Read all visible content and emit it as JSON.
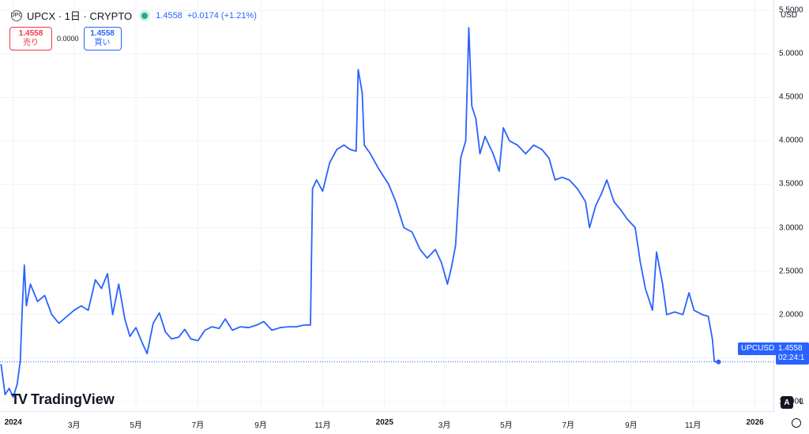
{
  "header": {
    "symbol_title": "UPCX · 1日 · CRYPTO",
    "symbol_icon": "upcx-logo-icon",
    "last_price": "1.4558",
    "change": "+0.0174 (+1.21%)",
    "status_color": "#22ab94"
  },
  "trade": {
    "sell_price": "1.4558",
    "sell_label": "売り",
    "spread": "0.0000",
    "buy_price": "1.4558",
    "buy_label": "買い"
  },
  "price_axis": {
    "currency": "USD",
    "ticks": [
      "5.5000",
      "5.0000",
      "4.5000",
      "4.0000",
      "3.5000",
      "3.0000",
      "2.5000",
      "2.0000",
      "1.5000",
      "1.0000"
    ]
  },
  "time_axis": {
    "ticks": [
      {
        "label": "2024",
        "bold": true
      },
      {
        "label": "3月",
        "bold": false
      },
      {
        "label": "5月",
        "bold": false
      },
      {
        "label": "7月",
        "bold": false
      },
      {
        "label": "9月",
        "bold": false
      },
      {
        "label": "11月",
        "bold": false
      },
      {
        "label": "2025",
        "bold": true
      },
      {
        "label": "3月",
        "bold": false
      },
      {
        "label": "5月",
        "bold": false
      },
      {
        "label": "7月",
        "bold": false
      },
      {
        "label": "9月",
        "bold": false
      },
      {
        "label": "11月",
        "bold": false
      },
      {
        "label": "2026",
        "bold": true
      }
    ]
  },
  "badges": {
    "symbol_tag": "UPCUSD",
    "price_tag_value": "1.4558",
    "price_tag_countdown": "02:24:1",
    "a_label": "A",
    "l_label": "L",
    "logo_text": "TradingView",
    "logo_mark": "TV"
  },
  "colors": {
    "line": "#2962ff",
    "grid": "#f0f3fa",
    "accent": "#2962ff",
    "sell": "#f23645"
  },
  "chart_data": {
    "type": "line",
    "series": [
      {
        "name": "UPCUSD",
        "points": [
          [
            "2023-12-20",
            1.43
          ],
          [
            "2023-12-24",
            1.08
          ],
          [
            "2023-12-28",
            1.15
          ],
          [
            "2024-01-01",
            1.05
          ],
          [
            "2024-01-05",
            1.2
          ],
          [
            "2024-01-08",
            1.47
          ],
          [
            "2024-01-10",
            2.1
          ],
          [
            "2024-01-12",
            2.57
          ],
          [
            "2024-01-14",
            2.1
          ],
          [
            "2024-01-18",
            2.35
          ],
          [
            "2024-01-25",
            2.15
          ],
          [
            "2024-02-01",
            2.22
          ],
          [
            "2024-02-08",
            2.0
          ],
          [
            "2024-02-15",
            1.9
          ],
          [
            "2024-02-22",
            1.97
          ],
          [
            "2024-03-01",
            2.05
          ],
          [
            "2024-03-08",
            2.1
          ],
          [
            "2024-03-15",
            2.05
          ],
          [
            "2024-03-22",
            2.4
          ],
          [
            "2024-03-28",
            2.3
          ],
          [
            "2024-04-03",
            2.47
          ],
          [
            "2024-04-08",
            2.0
          ],
          [
            "2024-04-14",
            2.35
          ],
          [
            "2024-04-20",
            1.95
          ],
          [
            "2024-04-25",
            1.75
          ],
          [
            "2024-05-01",
            1.85
          ],
          [
            "2024-05-07",
            1.68
          ],
          [
            "2024-05-12",
            1.55
          ],
          [
            "2024-05-18",
            1.9
          ],
          [
            "2024-05-24",
            2.02
          ],
          [
            "2024-05-30",
            1.8
          ],
          [
            "2024-06-05",
            1.72
          ],
          [
            "2024-06-12",
            1.74
          ],
          [
            "2024-06-18",
            1.83
          ],
          [
            "2024-06-24",
            1.72
          ],
          [
            "2024-07-01",
            1.7
          ],
          [
            "2024-07-08",
            1.82
          ],
          [
            "2024-07-15",
            1.86
          ],
          [
            "2024-07-22",
            1.84
          ],
          [
            "2024-07-28",
            1.95
          ],
          [
            "2024-08-04",
            1.82
          ],
          [
            "2024-08-12",
            1.86
          ],
          [
            "2024-08-20",
            1.85
          ],
          [
            "2024-08-28",
            1.88
          ],
          [
            "2024-09-04",
            1.92
          ],
          [
            "2024-09-12",
            1.82
          ],
          [
            "2024-09-20",
            1.85
          ],
          [
            "2024-09-28",
            1.86
          ],
          [
            "2024-10-06",
            1.86
          ],
          [
            "2024-10-14",
            1.88
          ],
          [
            "2024-10-20",
            1.88
          ],
          [
            "2024-10-22",
            3.45
          ],
          [
            "2024-10-26",
            3.55
          ],
          [
            "2024-11-01",
            3.42
          ],
          [
            "2024-11-08",
            3.75
          ],
          [
            "2024-11-15",
            3.9
          ],
          [
            "2024-11-22",
            3.95
          ],
          [
            "2024-11-28",
            3.9
          ],
          [
            "2024-12-04",
            3.88
          ],
          [
            "2024-12-06",
            4.82
          ],
          [
            "2024-12-10",
            4.55
          ],
          [
            "2024-12-12",
            3.95
          ],
          [
            "2024-12-18",
            3.85
          ],
          [
            "2024-12-26",
            3.68
          ],
          [
            "2025-01-05",
            3.5
          ],
          [
            "2025-01-12",
            3.3
          ],
          [
            "2025-01-20",
            3.0
          ],
          [
            "2025-01-28",
            2.95
          ],
          [
            "2025-02-05",
            2.75
          ],
          [
            "2025-02-12",
            2.65
          ],
          [
            "2025-02-20",
            2.75
          ],
          [
            "2025-02-26",
            2.6
          ],
          [
            "2025-03-04",
            2.35
          ],
          [
            "2025-03-08",
            2.55
          ],
          [
            "2025-03-12",
            2.8
          ],
          [
            "2025-03-17",
            3.8
          ],
          [
            "2025-03-22",
            4.0
          ],
          [
            "2025-03-25",
            5.3
          ],
          [
            "2025-03-28",
            4.4
          ],
          [
            "2025-04-01",
            4.25
          ],
          [
            "2025-04-05",
            3.85
          ],
          [
            "2025-04-10",
            4.05
          ],
          [
            "2025-04-18",
            3.85
          ],
          [
            "2025-04-24",
            3.65
          ],
          [
            "2025-04-28",
            4.15
          ],
          [
            "2025-05-04",
            4.0
          ],
          [
            "2025-05-12",
            3.95
          ],
          [
            "2025-05-20",
            3.85
          ],
          [
            "2025-05-28",
            3.95
          ],
          [
            "2025-06-05",
            3.9
          ],
          [
            "2025-06-12",
            3.8
          ],
          [
            "2025-06-18",
            3.55
          ],
          [
            "2025-06-25",
            3.58
          ],
          [
            "2025-07-02",
            3.55
          ],
          [
            "2025-07-10",
            3.45
          ],
          [
            "2025-07-18",
            3.3
          ],
          [
            "2025-07-22",
            3.0
          ],
          [
            "2025-07-28",
            3.25
          ],
          [
            "2025-08-03",
            3.4
          ],
          [
            "2025-08-08",
            3.55
          ],
          [
            "2025-08-15",
            3.3
          ],
          [
            "2025-08-22",
            3.2
          ],
          [
            "2025-08-28",
            3.1
          ],
          [
            "2025-09-05",
            3.0
          ],
          [
            "2025-09-10",
            2.6
          ],
          [
            "2025-09-15",
            2.3
          ],
          [
            "2025-09-22",
            2.05
          ],
          [
            "2025-09-26",
            2.72
          ],
          [
            "2025-10-02",
            2.35
          ],
          [
            "2025-10-06",
            2.0
          ],
          [
            "2025-10-14",
            2.03
          ],
          [
            "2025-10-22",
            2.0
          ],
          [
            "2025-10-28",
            2.25
          ],
          [
            "2025-11-02",
            2.05
          ],
          [
            "2025-11-10",
            2.0
          ],
          [
            "2025-11-16",
            1.98
          ],
          [
            "2025-11-20",
            1.72
          ],
          [
            "2025-11-22",
            1.46
          ],
          [
            "2025-11-26",
            1.4558
          ]
        ]
      }
    ],
    "xlabel": "",
    "ylabel": "",
    "ylim": [
      0.88,
      5.62
    ],
    "xlim": [
      "2023-12-19",
      "2026-01-20"
    ],
    "grid": true,
    "legend": "none",
    "last_value": 1.4558
  }
}
